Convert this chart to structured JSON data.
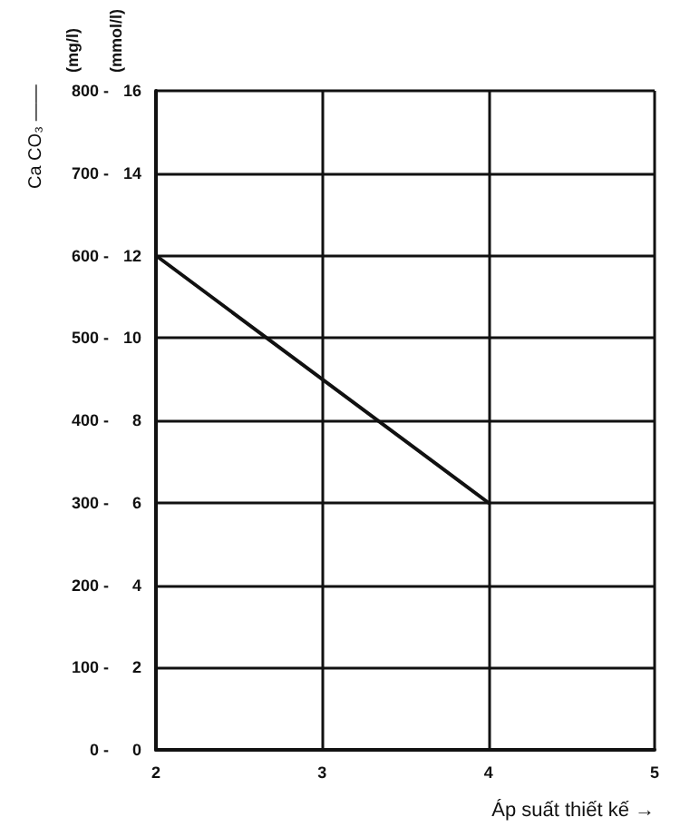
{
  "chart_data": {
    "type": "line",
    "xlabel": "Áp suất thiết kế →",
    "ylabel": "Ca CO₃ ——",
    "annotations": [
      "(mg/l)",
      "(mmol/l)"
    ],
    "x": [
      2,
      4
    ],
    "series": [
      {
        "color": "#111111",
        "values": [
          600,
          300
        ]
      }
    ],
    "xlim": [
      2,
      5
    ],
    "xticks": [
      2,
      3,
      4,
      5
    ],
    "ylim": [
      0,
      800
    ],
    "yticks": [
      {
        "value": 0,
        "label": "0 -"
      },
      {
        "value": 100,
        "label": "100 -"
      },
      {
        "value": 200,
        "label": "200 -"
      },
      {
        "value": 300,
        "label": "300 -"
      },
      {
        "value": 400,
        "label": "400 -"
      },
      {
        "value": 500,
        "label": "500 -"
      },
      {
        "value": 600,
        "label": "600 -"
      },
      {
        "value": 700,
        "label": "700 -"
      },
      {
        "value": 800,
        "label": "800 -"
      }
    ],
    "y2lim": [
      0,
      16
    ],
    "y2ticks": [
      0,
      2,
      4,
      6,
      8,
      10,
      12,
      14,
      16
    ],
    "grid": true,
    "marker": "none",
    "line_style": "solid"
  }
}
